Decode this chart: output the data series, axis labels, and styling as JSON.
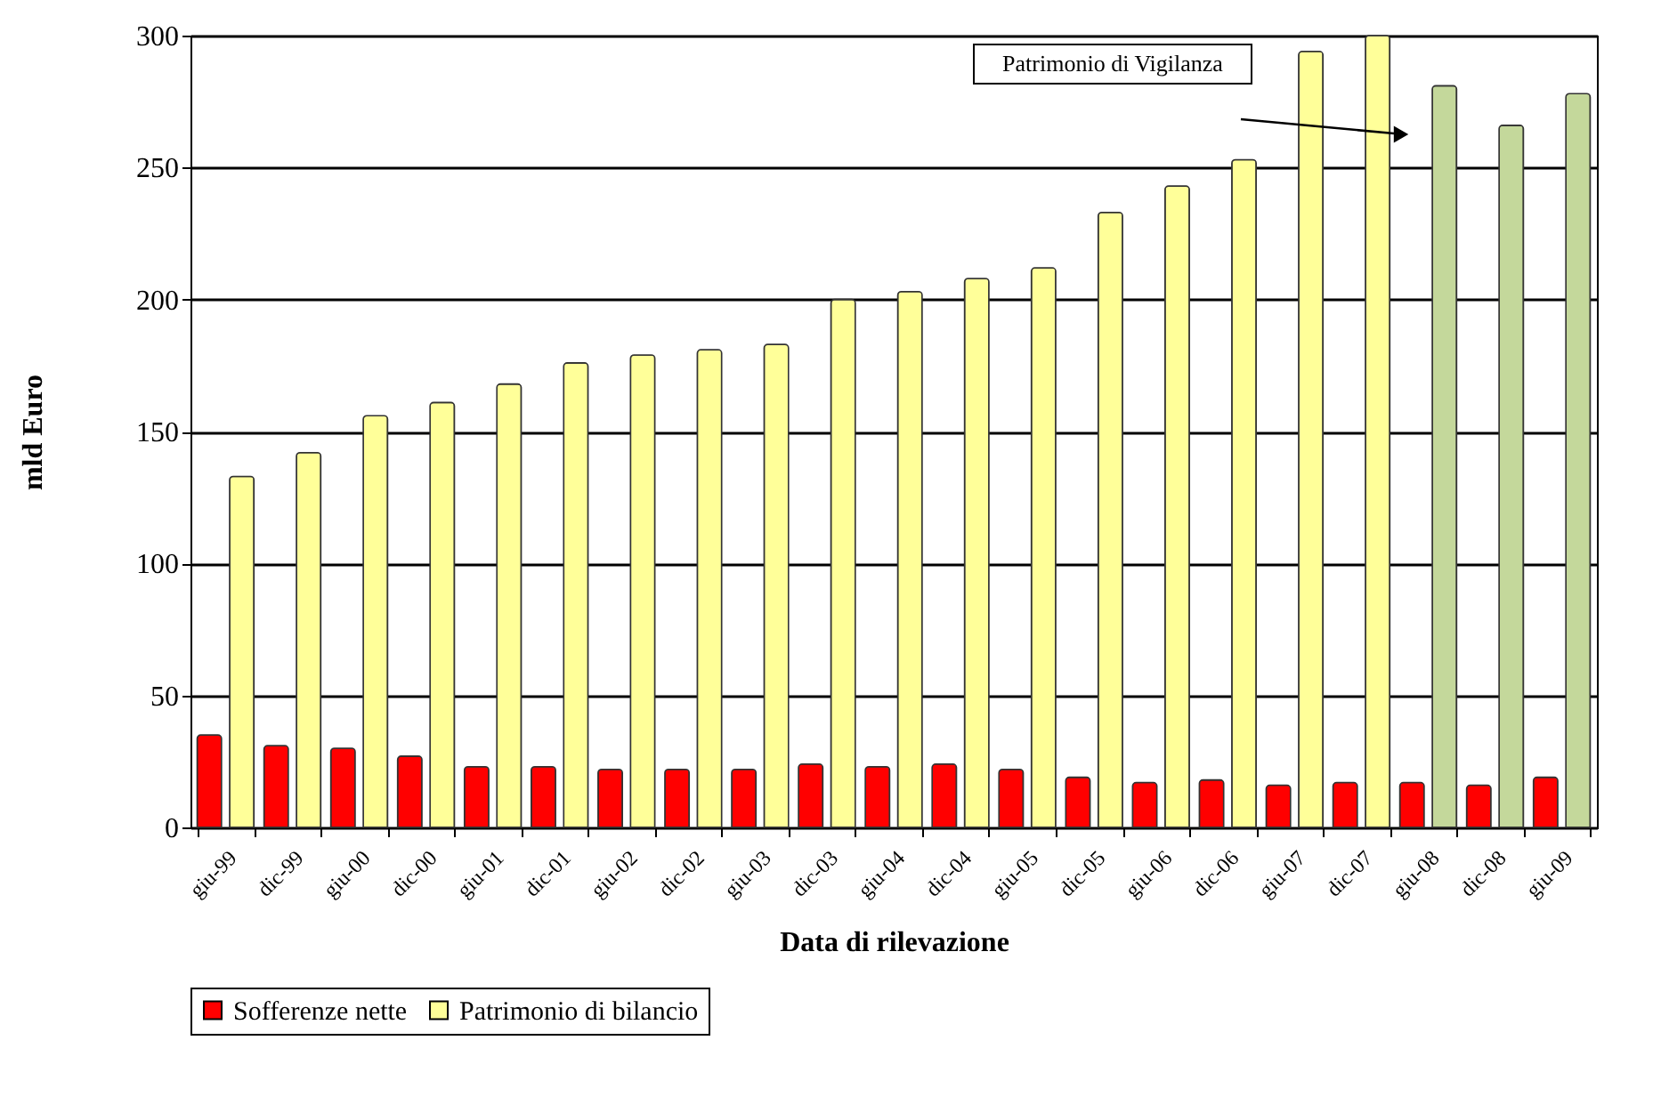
{
  "chart_data": {
    "type": "bar",
    "xlabel": "Data di rilevazione",
    "ylabel": "mld Euro",
    "categories": [
      "giu-99",
      "dic-99",
      "giu-00",
      "dic-00",
      "giu-01",
      "dic-01",
      "giu-02",
      "dic-02",
      "giu-03",
      "dic-03",
      "giu-04",
      "dic-04",
      "giu-05",
      "dic-05",
      "giu-06",
      "dic-06",
      "giu-07",
      "dic-07",
      "giu-08",
      "dic-08",
      "giu-09"
    ],
    "series": [
      {
        "name": "Sofferenze nette",
        "color": "#ff0000",
        "values": [
          35,
          31,
          30,
          27,
          23,
          23,
          22,
          22,
          22,
          24,
          23,
          24,
          22,
          19,
          17,
          18,
          16,
          17,
          17,
          16,
          19
        ]
      },
      {
        "name": "Patrimonio di bilancio",
        "color": "#ffff99",
        "colors": [
          "#ffff99",
          "#ffff99",
          "#ffff99",
          "#ffff99",
          "#ffff99",
          "#ffff99",
          "#ffff99",
          "#ffff99",
          "#ffff99",
          "#ffff99",
          "#ffff99",
          "#ffff99",
          "#ffff99",
          "#ffff99",
          "#ffff99",
          "#ffff99",
          "#ffff99",
          "#ffff99",
          "#c4d89b",
          "#c4d89b",
          "#c4d89b"
        ],
        "values": [
          133,
          142,
          156,
          161,
          168,
          176,
          179,
          181,
          183,
          200,
          203,
          208,
          212,
          233,
          243,
          253,
          294,
          300,
          281,
          266,
          278
        ]
      }
    ],
    "ylim": [
      0,
      300
    ],
    "yticks": [
      0,
      50,
      100,
      150,
      200,
      250,
      300
    ],
    "grid": "y",
    "legend": "bottom",
    "annotations": [
      "Patrimonio di Vigilanza"
    ]
  }
}
